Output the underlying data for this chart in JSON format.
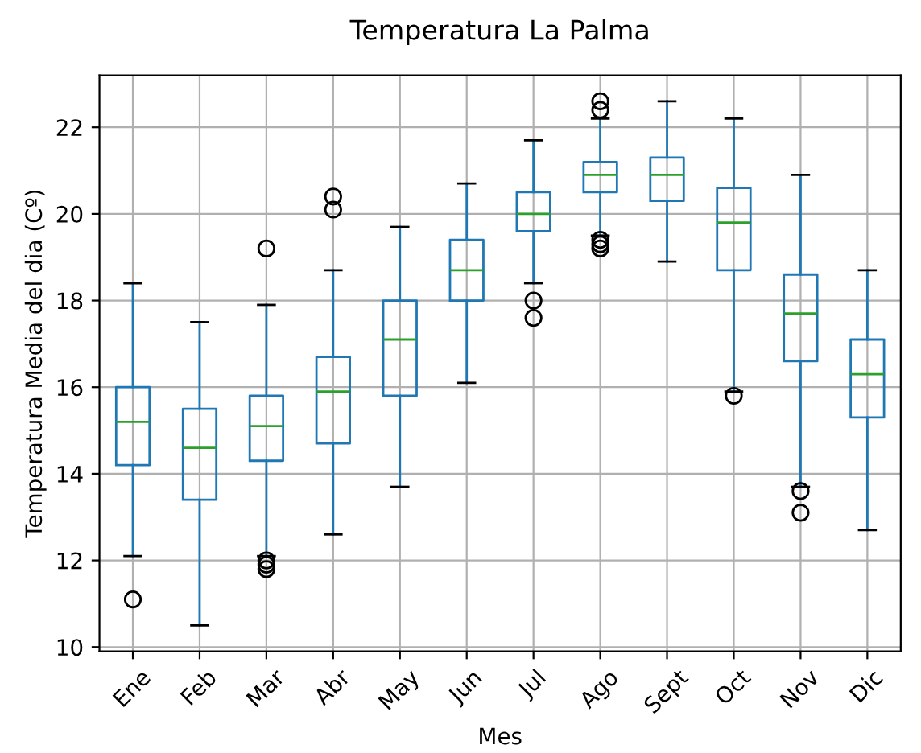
{
  "chart_data": {
    "type": "box",
    "title": "Temperatura La Palma",
    "xlabel": "Mes",
    "ylabel": "Temperatura Media del dia (Cº)",
    "categories": [
      "Ene",
      "Feb",
      "Mar",
      "Abr",
      "May",
      "Jun",
      "Jul",
      "Ago",
      "Sept",
      "Oct",
      "Nov",
      "Dic"
    ],
    "boxes": [
      {
        "low": 12.1,
        "q1": 14.2,
        "median": 15.2,
        "q3": 16.0,
        "high": 18.4,
        "outliers": [
          11.1
        ]
      },
      {
        "low": 10.5,
        "q1": 13.4,
        "median": 14.6,
        "q3": 15.5,
        "high": 17.5
      },
      {
        "low": 12.1,
        "q1": 14.3,
        "median": 15.1,
        "q3": 15.8,
        "high": 17.9,
        "outliers": [
          19.2,
          12.0,
          11.9,
          11.8
        ]
      },
      {
        "low": 12.6,
        "q1": 14.7,
        "median": 15.9,
        "q3": 16.7,
        "high": 18.7,
        "outliers": [
          20.1,
          20.4
        ]
      },
      {
        "low": 13.7,
        "q1": 15.8,
        "median": 17.1,
        "q3": 18.0,
        "high": 19.7
      },
      {
        "low": 16.1,
        "q1": 18.0,
        "median": 18.7,
        "q3": 19.4,
        "high": 20.7
      },
      {
        "low": 18.4,
        "q1": 19.6,
        "median": 20.0,
        "q3": 20.5,
        "high": 21.7,
        "outliers": [
          18.0,
          17.6
        ]
      },
      {
        "low": 19.5,
        "q1": 20.5,
        "median": 20.9,
        "q3": 21.2,
        "high": 22.2,
        "outliers": [
          22.4,
          22.6,
          19.4,
          19.3,
          19.2
        ]
      },
      {
        "low": 18.9,
        "q1": 20.3,
        "median": 20.9,
        "q3": 21.3,
        "high": 22.6
      },
      {
        "low": 15.9,
        "q1": 18.7,
        "median": 19.8,
        "q3": 20.6,
        "high": 22.2,
        "outliers": [
          15.8
        ]
      },
      {
        "low": 13.7,
        "q1": 16.6,
        "median": 17.7,
        "q3": 18.6,
        "high": 20.9,
        "outliers": [
          13.6,
          13.1
        ]
      },
      {
        "low": 12.7,
        "q1": 15.3,
        "median": 16.3,
        "q3": 17.1,
        "high": 18.7
      }
    ],
    "color": "#1f77b4",
    "ylim": [
      9.9,
      23.2
    ],
    "yticks": [
      10,
      12,
      14,
      16,
      18,
      20,
      22
    ],
    "grid": true
  }
}
